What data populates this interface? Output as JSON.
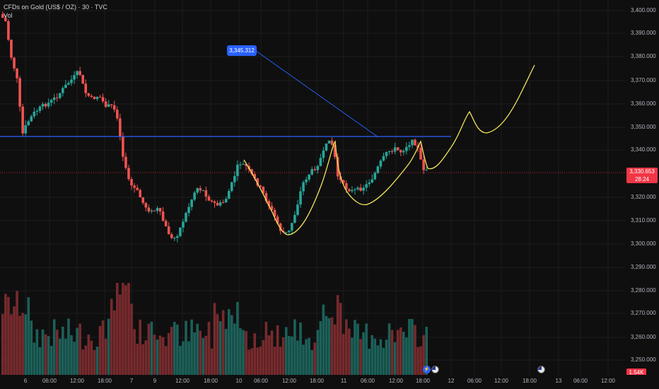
{
  "legend": {
    "symbol_line": "CFDs on Gold (US$ / OZ) · 30 · TVC",
    "volume_label": "Vol"
  },
  "callout": {
    "label": "3,345.312"
  },
  "current_price": {
    "price": "3,330.653",
    "countdown": "28:24",
    "color": "#f23645"
  },
  "volume_tag": "1.54K",
  "price_axis": {
    "labels": [
      "3,400.000",
      "3,390.000",
      "3,380.000",
      "3,370.000",
      "3,360.000",
      "3,350.000",
      "3,340.000",
      "3,320.000",
      "3,310.000",
      "3,300.000",
      "3,290.000",
      "3,280.000",
      "3,270.000",
      "3,260.000",
      "3,250.000"
    ]
  },
  "time_axis": {
    "labels": [
      "6",
      "06:00",
      "12:00",
      "18:00",
      "7",
      "9",
      "12:00",
      "18:00",
      "10",
      "06:00",
      "12:00",
      "18:00",
      "11",
      "06:00",
      "12:00",
      "18:00",
      "12",
      "06:00",
      "12:00",
      "18:00",
      "13",
      "06:00",
      "12:00"
    ]
  },
  "colors": {
    "up": "#26a69a",
    "down": "#ef5350",
    "resistance": "#2962ff",
    "projection": "#f2e55c",
    "background": "#0f0f0f"
  },
  "icons": {
    "event_bolt": "lightning-icon",
    "country_flag": "us-flag-icon"
  }
}
